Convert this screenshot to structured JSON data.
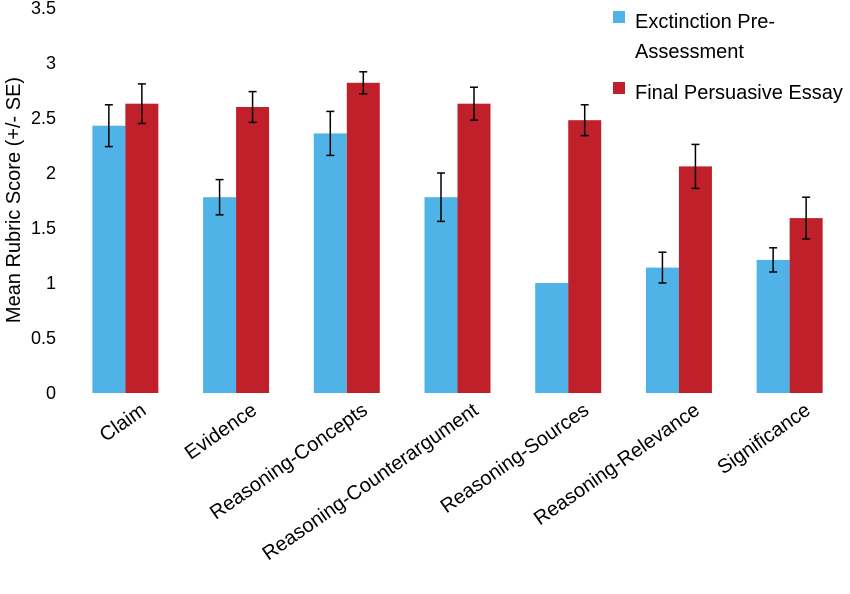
{
  "chart_data": {
    "type": "bar",
    "ylabel": "Mean Rubric Score (+/- SE)",
    "ylim": [
      0,
      3.5
    ],
    "yticks": [
      "0",
      "0.5",
      "1",
      "1.5",
      "2",
      "2.5",
      "3",
      "3.5"
    ],
    "grid": false,
    "legend_position": "top-right",
    "categories": [
      "Claim",
      "Evidence",
      "Reasoning-Concepts",
      "Reasoning-Counterargument",
      "Reasoning-Sources",
      "Reasoning-Relevance",
      "Significance"
    ],
    "series": [
      {
        "name": "Exctinction Pre-Assessment",
        "legend_lines": [
          "Exctinction Pre-",
          "Assessment"
        ],
        "color": "#4fb3e8",
        "values": [
          2.43,
          1.78,
          2.36,
          1.78,
          1.0,
          1.14,
          1.21
        ],
        "errors": [
          0.19,
          0.16,
          0.2,
          0.22,
          0.0,
          0.14,
          0.11
        ]
      },
      {
        "name": "Final Persuasive Essay",
        "legend_lines": [
          "Final Persuasive Essay"
        ],
        "color": "#c0202a",
        "values": [
          2.63,
          2.6,
          2.82,
          2.63,
          2.48,
          2.06,
          1.59
        ],
        "errors": [
          0.18,
          0.14,
          0.1,
          0.15,
          0.14,
          0.2,
          0.19
        ]
      }
    ]
  }
}
